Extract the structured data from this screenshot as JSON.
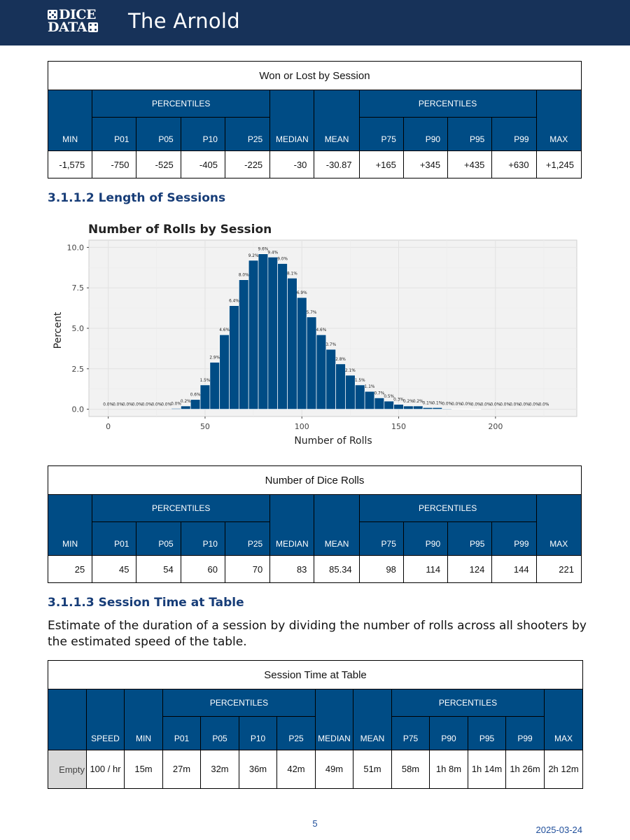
{
  "header": {
    "logo_top": "DICE",
    "logo_bottom": "DATA",
    "title": "The Arnold"
  },
  "table1": {
    "caption": "Won or Lost by Session",
    "percentiles_label": "PERCENTILES",
    "columns": [
      "MIN",
      "P01",
      "P05",
      "P10",
      "P25",
      "MEDIAN",
      "MEAN",
      "P75",
      "P90",
      "P95",
      "P99",
      "MAX"
    ],
    "values": [
      "-1,575",
      "-750",
      "-525",
      "-405",
      "-225",
      "-30",
      "-30.87",
      "+165",
      "+345",
      "+435",
      "+630",
      "+1,245"
    ]
  },
  "section2_title": "3.1.1.2 Length of Sessions",
  "chart_data": {
    "type": "bar",
    "title": "Number of Rolls by Session",
    "xlabel": "Number of Rolls",
    "ylabel": "Percent",
    "xlim": [
      -10,
      242
    ],
    "ylim": [
      -0.45,
      10.45
    ],
    "x_ticks": [
      0,
      50,
      100,
      150,
      200
    ],
    "y_ticks": [
      "0.0",
      "2.5",
      "5.0",
      "7.5",
      "10.0"
    ],
    "bin_width": 5,
    "grid": true,
    "bars": [
      {
        "x": 0,
        "value": 0.0,
        "label": "0.0%"
      },
      {
        "x": 5,
        "value": 0.0,
        "label": "0.0%"
      },
      {
        "x": 10,
        "value": 0.0,
        "label": "0.0%"
      },
      {
        "x": 15,
        "value": 0.0,
        "label": "0.0%"
      },
      {
        "x": 20,
        "value": 0.0,
        "label": "0.0%"
      },
      {
        "x": 25,
        "value": 0.0,
        "label": "0.0%"
      },
      {
        "x": 30,
        "value": 0.0,
        "label": "0.0%"
      },
      {
        "x": 35,
        "value": 0.05,
        "label": "0.0%"
      },
      {
        "x": 40,
        "value": 0.2,
        "label": "0.2%"
      },
      {
        "x": 45,
        "value": 0.6,
        "label": "0.6%"
      },
      {
        "x": 50,
        "value": 1.5,
        "label": "1.5%"
      },
      {
        "x": 55,
        "value": 2.9,
        "label": "2.9%"
      },
      {
        "x": 60,
        "value": 4.6,
        "label": "4.6%"
      },
      {
        "x": 65,
        "value": 6.4,
        "label": "6.4%"
      },
      {
        "x": 70,
        "value": 8.0,
        "label": "8.0%"
      },
      {
        "x": 75,
        "value": 9.2,
        "label": "9.2%"
      },
      {
        "x": 80,
        "value": 9.6,
        "label": "9.6%"
      },
      {
        "x": 85,
        "value": 9.4,
        "label": "9.4%"
      },
      {
        "x": 90,
        "value": 9.0,
        "label": "9.0%"
      },
      {
        "x": 95,
        "value": 8.1,
        "label": "8.1%"
      },
      {
        "x": 100,
        "value": 6.9,
        "label": "6.9%"
      },
      {
        "x": 105,
        "value": 5.7,
        "label": "5.7%"
      },
      {
        "x": 110,
        "value": 4.6,
        "label": "4.6%"
      },
      {
        "x": 115,
        "value": 3.7,
        "label": "3.7%"
      },
      {
        "x": 120,
        "value": 2.8,
        "label": "2.8%"
      },
      {
        "x": 125,
        "value": 2.1,
        "label": "2.1%"
      },
      {
        "x": 130,
        "value": 1.5,
        "label": "1.5%"
      },
      {
        "x": 135,
        "value": 1.1,
        "label": "1.1%"
      },
      {
        "x": 140,
        "value": 0.7,
        "label": "0.7%"
      },
      {
        "x": 145,
        "value": 0.5,
        "label": "0.5%"
      },
      {
        "x": 150,
        "value": 0.3,
        "label": "0.3%"
      },
      {
        "x": 155,
        "value": 0.2,
        "label": "0.2%"
      },
      {
        "x": 160,
        "value": 0.2,
        "label": "0.2%"
      },
      {
        "x": 165,
        "value": 0.1,
        "label": "0.1%"
      },
      {
        "x": 170,
        "value": 0.1,
        "label": "0.1%"
      },
      {
        "x": 175,
        "value": 0.04,
        "label": "0.0%"
      },
      {
        "x": 180,
        "value": 0.03,
        "label": "0.0%"
      },
      {
        "x": 185,
        "value": 0.02,
        "label": "0.0%"
      },
      {
        "x": 190,
        "value": 0.01,
        "label": "0.0%"
      },
      {
        "x": 195,
        "value": 0.0,
        "label": "0.0%"
      },
      {
        "x": 200,
        "value": 0.0,
        "label": "0.0%"
      },
      {
        "x": 205,
        "value": 0.0,
        "label": "0.0%"
      },
      {
        "x": 210,
        "value": 0.0,
        "label": "0.0%"
      },
      {
        "x": 215,
        "value": 0.0,
        "label": "0.0%"
      },
      {
        "x": 220,
        "value": 0.0,
        "label": "0.0%"
      },
      {
        "x": 225,
        "value": 0.0,
        "label": "0.0%"
      }
    ],
    "colors": {
      "bar": "#004c85",
      "panel": "#f2f2f2",
      "grid": "#e2e2e2"
    }
  },
  "table2": {
    "caption": "Number of Dice Rolls",
    "percentiles_label": "PERCENTILES",
    "columns": [
      "MIN",
      "P01",
      "P05",
      "P10",
      "P25",
      "MEDIAN",
      "MEAN",
      "P75",
      "P90",
      "P95",
      "P99",
      "MAX"
    ],
    "values": [
      "25",
      "45",
      "54",
      "60",
      "70",
      "83",
      "85.34",
      "98",
      "114",
      "124",
      "144",
      "221"
    ]
  },
  "section3_title": "3.1.1.3 Session Time at Table",
  "section3_text": "Estimate of the duration of a session by dividing the number of rolls across all shooters by the estimated speed of the table.",
  "table3": {
    "caption": "Session Time at Table",
    "percentiles_label": "PERCENTILES",
    "columns": [
      "SPEED",
      "MIN",
      "P01",
      "P05",
      "P10",
      "P25",
      "MEDIAN",
      "MEAN",
      "P75",
      "P90",
      "P95",
      "P99",
      "MAX"
    ],
    "row_label": "Empty",
    "values": [
      "100 / hr",
      "15m",
      "27m",
      "32m",
      "36m",
      "42m",
      "49m",
      "51m",
      "58m",
      "1h 8m",
      "1h 14m",
      "1h 26m",
      "2h 12m"
    ]
  },
  "footer": {
    "page": "5",
    "date": "2025-03-24"
  },
  "colors": {
    "header_bg": "#173259",
    "table_header": "#004c85",
    "section_title": "#173d78",
    "empty_cell": "#d9d9d9"
  }
}
